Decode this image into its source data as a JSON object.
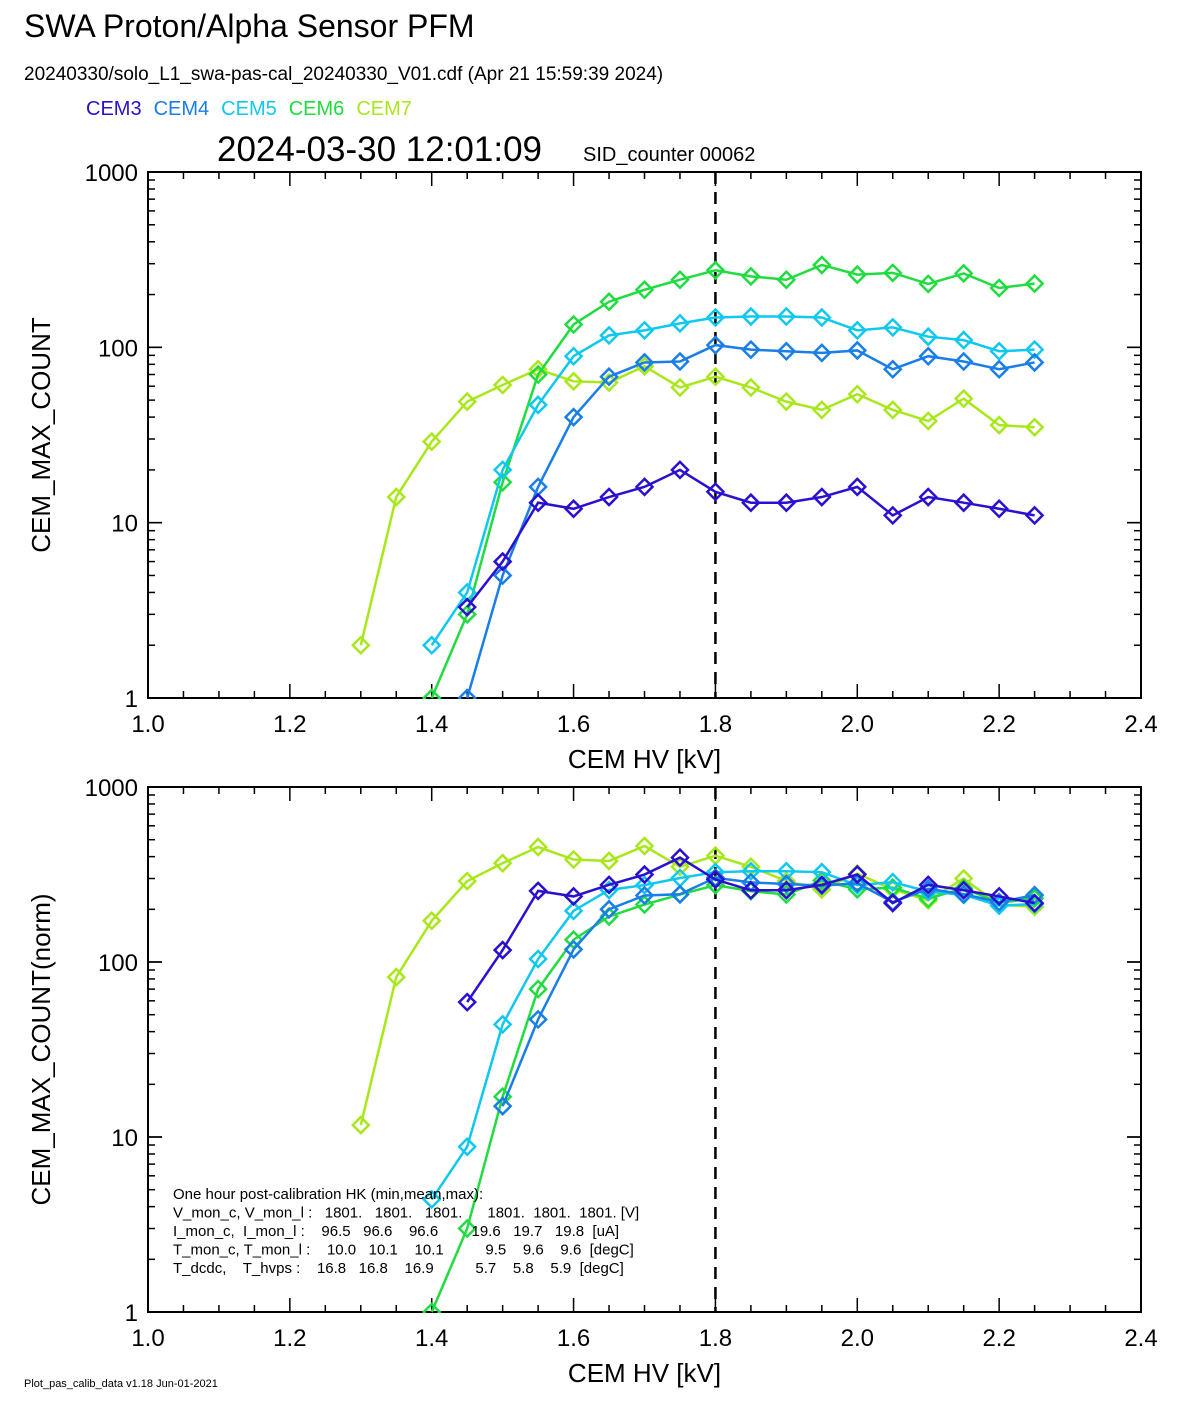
{
  "header": {
    "title": "SWA Proton/Alpha Sensor PFM",
    "subtitle": "20240330/solo_L1_swa-pas-cal_20240330_V01.cdf  (Apr 21 15:59:39 2024)",
    "timestamp": "2024-03-30 12:01:09",
    "sid_counter": "SID_counter 00062"
  },
  "legend": [
    {
      "name": "CEM3",
      "color": "#2a10d0"
    },
    {
      "name": "CEM4",
      "color": "#1a7ee8"
    },
    {
      "name": "CEM5",
      "color": "#10c8ee"
    },
    {
      "name": "CEM6",
      "color": "#20dc40"
    },
    {
      "name": "CEM7",
      "color": "#a8e81a"
    }
  ],
  "hk_box": {
    "lines": [
      "One hour post-calibration HK (min,mean,max):",
      "V_mon_c, V_mon_l :   1801.   1801.   1801.      1801.  1801.  1801. [V]",
      "I_mon_c,  I_mon_l :    96.5   96.6    96.6        19.6   19.7   19.8  [uA]",
      "T_mon_c, T_mon_l :    10.0   10.1    10.1          9.5    9.6    9.6  [degC]",
      "T_dcdc,    T_hvps :    16.8   16.8    16.9          5.7    5.8    5.9  [degC]"
    ]
  },
  "footer": "Plot_pas_calib_data v1.18 Jun-01-2021",
  "chart_data": [
    {
      "type": "line",
      "xlabel": "CEM HV [kV]",
      "ylabel": "CEM_MAX_COUNT",
      "xlim": [
        1.0,
        2.4
      ],
      "ylim": [
        1,
        1000
      ],
      "yscale": "log",
      "xticks": [
        "1.0",
        "1.2",
        "1.4",
        "1.6",
        "1.8",
        "2.0",
        "2.2",
        "2.4"
      ],
      "yticks": [
        "1",
        "10",
        "100",
        "1000"
      ],
      "vline": 1.8,
      "series": [
        {
          "name": "CEM7",
          "color": "#a8e81a",
          "x": [
            1.3,
            1.35,
            1.4,
            1.45,
            1.5,
            1.55,
            1.6,
            1.65,
            1.7,
            1.75,
            1.8,
            1.85,
            1.9,
            1.95,
            2.0,
            2.05,
            2.1,
            2.15,
            2.2,
            2.25
          ],
          "y": [
            2,
            14,
            29,
            49,
            61,
            75,
            64,
            63,
            78,
            59,
            68,
            59,
            49,
            44,
            54,
            44,
            38,
            51,
            36,
            35
          ]
        },
        {
          "name": "CEM6",
          "color": "#20dc40",
          "x": [
            1.4,
            1.45,
            1.5,
            1.55,
            1.6,
            1.65,
            1.7,
            1.75,
            1.8,
            1.85,
            1.9,
            1.95,
            2.0,
            2.05,
            2.1,
            2.15,
            2.2,
            2.25
          ],
          "y": [
            1,
            3,
            17,
            70,
            135,
            182,
            213,
            243,
            275,
            254,
            243,
            295,
            260,
            266,
            230,
            264,
            218,
            231
          ]
        },
        {
          "name": "CEM5",
          "color": "#10c8ee",
          "x": [
            1.4,
            1.45,
            1.5,
            1.55,
            1.6,
            1.65,
            1.7,
            1.75,
            1.8,
            1.85,
            1.9,
            1.95,
            2.0,
            2.05,
            2.1,
            2.15,
            2.2,
            2.25
          ],
          "y": [
            2,
            4,
            20,
            47,
            89,
            117,
            125,
            137,
            148,
            150,
            150,
            148,
            125,
            130,
            115,
            110,
            95,
            97
          ]
        },
        {
          "name": "CEM4",
          "color": "#1a7ee8",
          "x": [
            1.45,
            1.5,
            1.55,
            1.6,
            1.65,
            1.7,
            1.75,
            1.8,
            1.85,
            1.9,
            1.95,
            2.0,
            2.05,
            2.1,
            2.15,
            2.2,
            2.25
          ],
          "y": [
            1,
            5,
            16,
            40,
            68,
            82,
            83,
            103,
            97,
            95,
            93,
            96,
            75,
            89,
            83,
            75,
            82
          ]
        },
        {
          "name": "CEM3",
          "color": "#2a10d0",
          "x": [
            1.45,
            1.5,
            1.55,
            1.6,
            1.65,
            1.7,
            1.75,
            1.8,
            1.85,
            1.9,
            1.95,
            2.0,
            2.05,
            2.1,
            2.15,
            2.2,
            2.25
          ],
          "y": [
            3.3,
            6,
            13,
            12,
            14,
            16,
            20,
            15,
            13,
            13,
            14,
            16,
            11,
            14,
            13,
            12,
            11
          ]
        }
      ]
    },
    {
      "type": "line",
      "xlabel": "CEM HV [kV]",
      "ylabel": "CEM_MAX_COUNT(norm)",
      "xlim": [
        1.0,
        2.4
      ],
      "ylim": [
        1,
        1000
      ],
      "yscale": "log",
      "xticks": [
        "1.0",
        "1.2",
        "1.4",
        "1.6",
        "1.8",
        "2.0",
        "2.2",
        "2.4"
      ],
      "yticks": [
        "1",
        "10",
        "100",
        "1000"
      ],
      "vline": 1.8,
      "series": [
        {
          "name": "CEM7",
          "color": "#a8e81a",
          "x": [
            1.3,
            1.35,
            1.4,
            1.45,
            1.5,
            1.55,
            1.6,
            1.65,
            1.7,
            1.75,
            1.8,
            1.85,
            1.9,
            1.95,
            2.0,
            2.05,
            2.1,
            2.15,
            2.2,
            2.25
          ],
          "y": [
            11.7,
            82,
            172,
            290,
            367,
            454,
            385,
            378,
            460,
            350,
            405,
            350,
            290,
            260,
            320,
            260,
            225,
            300,
            212,
            207
          ]
        },
        {
          "name": "CEM6",
          "color": "#20dc40",
          "x": [
            1.4,
            1.45,
            1.5,
            1.55,
            1.6,
            1.65,
            1.7,
            1.75,
            1.8,
            1.85,
            1.9,
            1.95,
            2.0,
            2.05,
            2.1,
            2.15,
            2.2,
            2.25
          ],
          "y": [
            1,
            3,
            17,
            70,
            134,
            182,
            213,
            243,
            275,
            254,
            243,
            292,
            260,
            266,
            230,
            264,
            218,
            231
          ]
        },
        {
          "name": "CEM5",
          "color": "#10c8ee",
          "x": [
            1.4,
            1.45,
            1.5,
            1.55,
            1.6,
            1.65,
            1.7,
            1.75,
            1.8,
            1.85,
            1.9,
            1.95,
            2.0,
            2.05,
            2.1,
            2.15,
            2.2,
            2.25
          ],
          "y": [
            4.4,
            8.8,
            44,
            104,
            196,
            258,
            275,
            302,
            326,
            330,
            330,
            326,
            275,
            286,
            253,
            242,
            210,
            214
          ]
        },
        {
          "name": "CEM4",
          "color": "#1a7ee8",
          "x": [
            1.5,
            1.55,
            1.6,
            1.65,
            1.7,
            1.75,
            1.8,
            1.85,
            1.9,
            1.95,
            2.0,
            2.05,
            2.1,
            2.15,
            2.2,
            2.25
          ],
          "y": [
            15,
            47,
            118,
            200,
            240,
            244,
            303,
            285,
            279,
            273,
            282,
            220,
            262,
            244,
            220,
            241
          ]
        },
        {
          "name": "CEM3",
          "color": "#2a10d0",
          "x": [
            1.45,
            1.5,
            1.55,
            1.6,
            1.65,
            1.7,
            1.75,
            1.8,
            1.85,
            1.9,
            1.95,
            2.0,
            2.05,
            2.1,
            2.15,
            2.2,
            2.25
          ],
          "y": [
            59,
            117,
            255,
            237,
            276,
            316,
            395,
            296,
            257,
            257,
            276,
            316,
            217,
            276,
            257,
            237,
            217
          ]
        }
      ]
    }
  ]
}
